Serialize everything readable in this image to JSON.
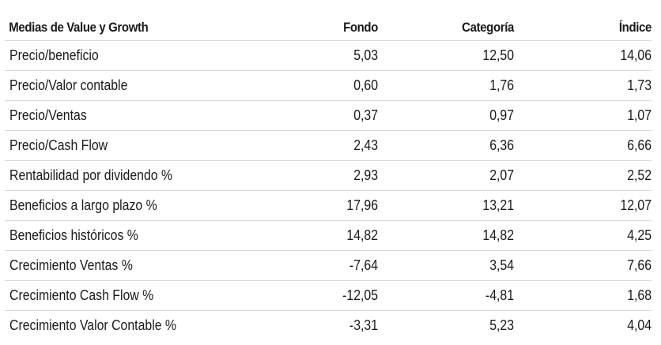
{
  "table": {
    "headers": {
      "label": "Medias de Value y Growth",
      "fondo": "Fondo",
      "categoria": "Categoría",
      "indice": "Índice"
    },
    "rows": [
      {
        "label": "Precio/beneficio",
        "fondo": "5,03",
        "categoria": "12,50",
        "indice": "14,06"
      },
      {
        "label": "Precio/Valor contable",
        "fondo": "0,60",
        "categoria": "1,76",
        "indice": "1,73"
      },
      {
        "label": "Precio/Ventas",
        "fondo": "0,37",
        "categoria": "0,97",
        "indice": "1,07"
      },
      {
        "label": "Precio/Cash Flow",
        "fondo": "2,43",
        "categoria": "6,36",
        "indice": "6,66"
      },
      {
        "label": "Rentabilidad por dividendo %",
        "fondo": "2,93",
        "categoria": "2,07",
        "indice": "2,52"
      },
      {
        "label": "Beneficios a largo plazo %",
        "fondo": "17,96",
        "categoria": "13,21",
        "indice": "12,07"
      },
      {
        "label": "Beneficios históricos %",
        "fondo": "14,82",
        "categoria": "14,82",
        "indice": "4,25"
      },
      {
        "label": "Crecimiento Ventas %",
        "fondo": "-7,64",
        "categoria": "3,54",
        "indice": "7,66"
      },
      {
        "label": "Crecimiento Cash Flow %",
        "fondo": "-12,05",
        "categoria": "-4,81",
        "indice": "1,68"
      },
      {
        "label": "Crecimiento Valor Contable %",
        "fondo": "-3,31",
        "categoria": "5,23",
        "indice": "4,04"
      }
    ]
  }
}
